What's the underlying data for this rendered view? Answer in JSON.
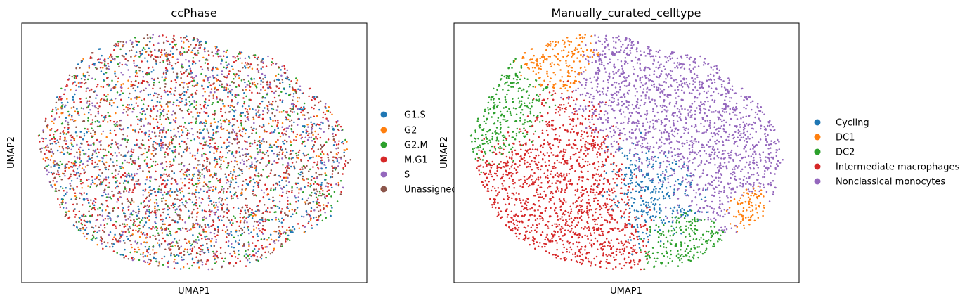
{
  "chart_data": [
    {
      "type": "scatter",
      "title": "ccPhase",
      "xlabel": "UMAP1",
      "ylabel": "UMAP2",
      "grid": false,
      "ticks": false,
      "legend_position": "right",
      "legend": [
        {
          "label": "G1.S",
          "color": "#1f77b4"
        },
        {
          "label": "G2",
          "color": "#ff7f0e"
        },
        {
          "label": "G2.M",
          "color": "#2ca02c"
        },
        {
          "label": "M.G1",
          "color": "#d62728"
        },
        {
          "label": "S",
          "color": "#9467bd"
        },
        {
          "label": "Unassigned",
          "color": "#8c564b"
        }
      ],
      "series": [
        {
          "name": "G1.S",
          "color": "#1f77b4",
          "share": 0.18
        },
        {
          "name": "G2",
          "color": "#ff7f0e",
          "share": 0.09
        },
        {
          "name": "G2.M",
          "color": "#2ca02c",
          "share": 0.12
        },
        {
          "name": "M.G1",
          "color": "#d62728",
          "share": 0.28
        },
        {
          "name": "S",
          "color": "#9467bd",
          "share": 0.13
        },
        {
          "name": "Unassigned",
          "color": "#8c564b",
          "share": 0.2
        }
      ]
    },
    {
      "type": "scatter",
      "title": "Manually_curated_celltype",
      "xlabel": "UMAP1",
      "ylabel": "UMAP2",
      "grid": false,
      "ticks": false,
      "legend_position": "right",
      "legend": [
        {
          "label": "Cycling",
          "color": "#1f77b4"
        },
        {
          "label": "DC1",
          "color": "#ff7f0e"
        },
        {
          "label": "DC2",
          "color": "#2ca02c"
        },
        {
          "label": "Intermediate macrophages",
          "color": "#d62728"
        },
        {
          "label": "Nonclassical monocytes",
          "color": "#9467bd"
        }
      ],
      "series": [
        {
          "name": "Cycling",
          "color": "#1f77b4"
        },
        {
          "name": "DC1",
          "color": "#ff7f0e"
        },
        {
          "name": "DC2",
          "color": "#2ca02c"
        },
        {
          "name": "Intermediate macrophages",
          "color": "#d62728"
        },
        {
          "name": "Nonclassical monocytes",
          "color": "#9467bd"
        }
      ]
    }
  ]
}
